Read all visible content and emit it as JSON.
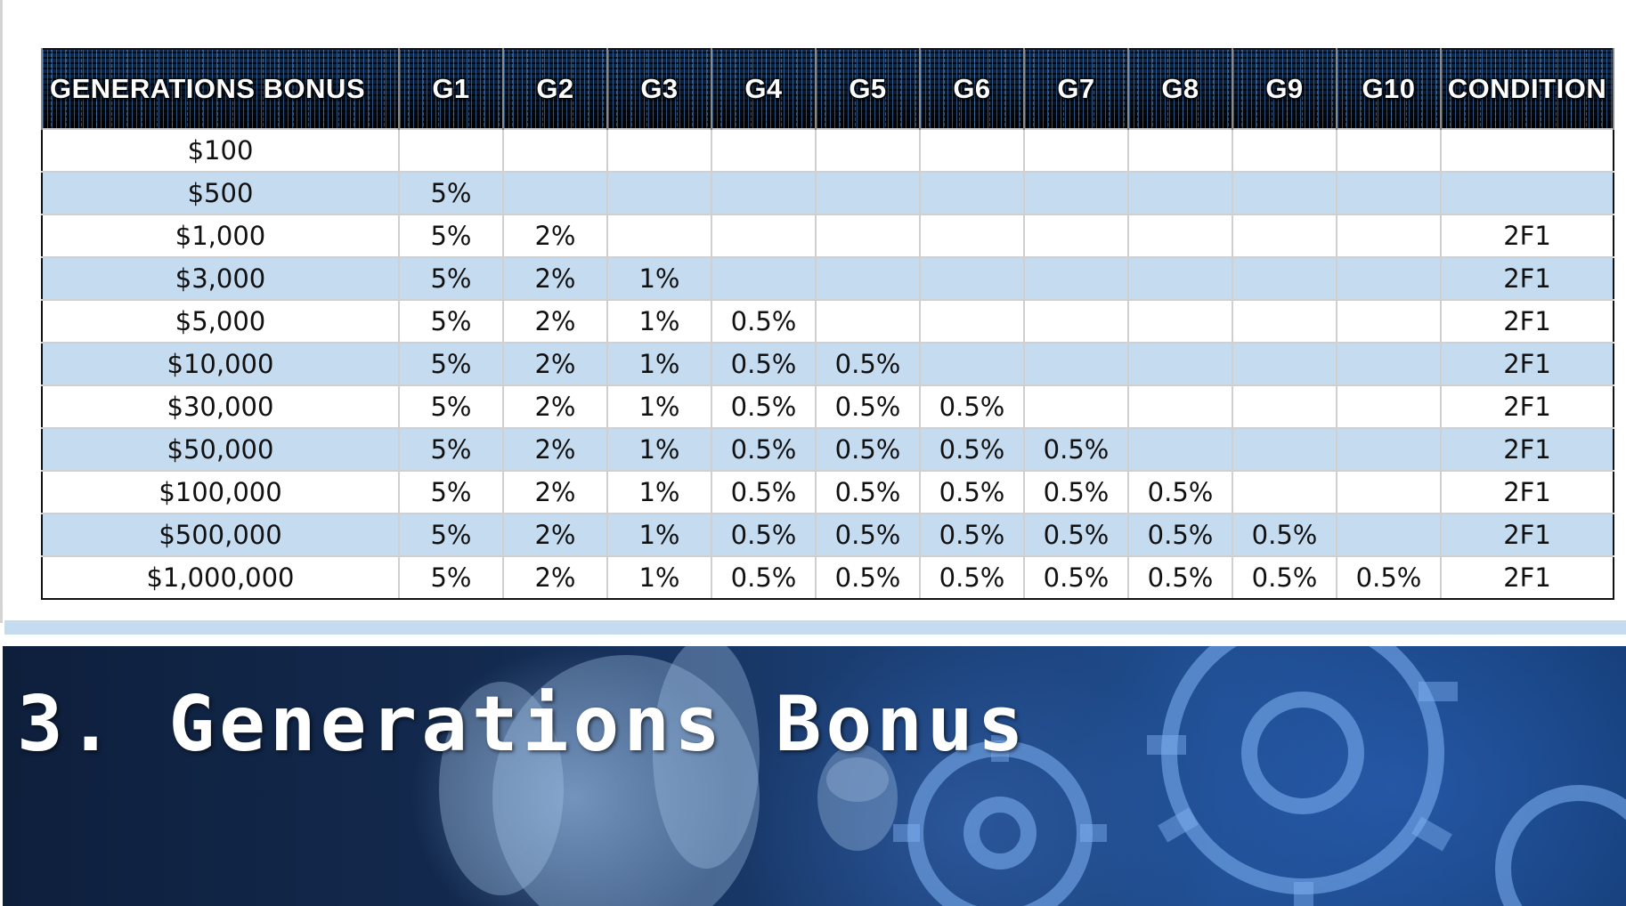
{
  "table": {
    "headers": [
      "GENERATIONS BONUS",
      "G1",
      "G2",
      "G3",
      "G4",
      "G5",
      "G6",
      "G7",
      "G8",
      "G9",
      "G10",
      "CONDITION"
    ],
    "rows": [
      [
        "$100",
        "",
        "",
        "",
        "",
        "",
        "",
        "",
        "",
        "",
        "",
        ""
      ],
      [
        "$500",
        "5%",
        "",
        "",
        "",
        "",
        "",
        "",
        "",
        "",
        "",
        ""
      ],
      [
        "$1,000",
        "5%",
        "2%",
        "",
        "",
        "",
        "",
        "",
        "",
        "",
        "",
        "2F1"
      ],
      [
        "$3,000",
        "5%",
        "2%",
        "1%",
        "",
        "",
        "",
        "",
        "",
        "",
        "",
        "2F1"
      ],
      [
        "$5,000",
        "5%",
        "2%",
        "1%",
        "0.5%",
        "",
        "",
        "",
        "",
        "",
        "",
        "2F1"
      ],
      [
        "$10,000",
        "5%",
        "2%",
        "1%",
        "0.5%",
        "0.5%",
        "",
        "",
        "",
        "",
        "",
        "2F1"
      ],
      [
        "$30,000",
        "5%",
        "2%",
        "1%",
        "0.5%",
        "0.5%",
        "0.5%",
        "",
        "",
        "",
        "",
        "2F1"
      ],
      [
        "$50,000",
        "5%",
        "2%",
        "1%",
        "0.5%",
        "0.5%",
        "0.5%",
        "0.5%",
        "",
        "",
        "",
        "2F1"
      ],
      [
        "$100,000",
        "5%",
        "2%",
        "1%",
        "0.5%",
        "0.5%",
        "0.5%",
        "0.5%",
        "0.5%",
        "",
        "",
        "2F1"
      ],
      [
        "$500,000",
        "5%",
        "2%",
        "1%",
        "0.5%",
        "0.5%",
        "0.5%",
        "0.5%",
        "0.5%",
        "0.5%",
        "",
        "2F1"
      ],
      [
        "$1,000,000",
        "5%",
        "2%",
        "1%",
        "0.5%",
        "0.5%",
        "0.5%",
        "0.5%",
        "0.5%",
        "0.5%",
        "0.5%",
        "2F1"
      ]
    ]
  },
  "banner": {
    "title": "3. Generations Bonus"
  },
  "colors": {
    "header_bg": "#03070e",
    "row_alt": "#c5dbf0",
    "banner_bg": "#163f7a"
  }
}
